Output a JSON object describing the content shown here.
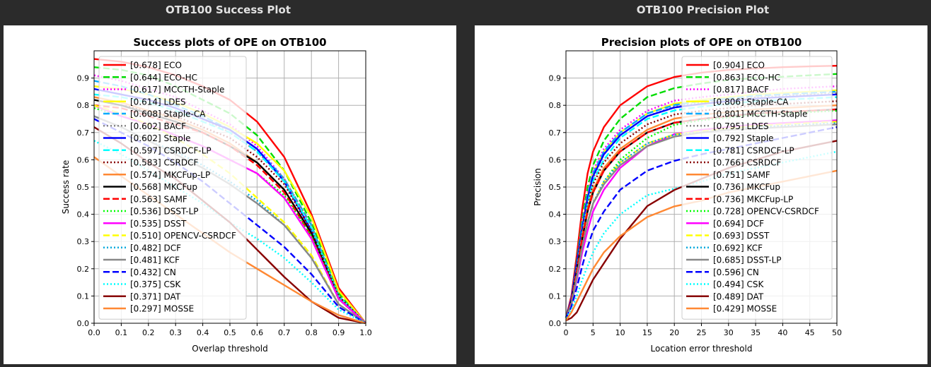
{
  "colors": {
    "background": "#2b2b2b",
    "panel_title": "#e2e2e2",
    "plot_bg": "#ffffff",
    "grid": "#b0b0b0"
  },
  "panels": [
    {
      "label": "OTB100 Success Plot"
    },
    {
      "label": "OTB100 Precision Plot"
    }
  ],
  "chart_data": [
    {
      "type": "line",
      "title": "Success plots of OPE on OTB100",
      "xlabel": "Overlap threshold",
      "ylabel": "Success rate",
      "xlim": [
        0,
        1
      ],
      "ylim": [
        0,
        1
      ],
      "xticks": [
        "0.0",
        "0.1",
        "0.2",
        "0.3",
        "0.4",
        "0.5",
        "0.6",
        "0.7",
        "0.8",
        "0.9",
        "1.0"
      ],
      "yticks": [
        "0.0",
        "0.1",
        "0.2",
        "0.3",
        "0.4",
        "0.5",
        "0.6",
        "0.7",
        "0.8",
        "0.9"
      ],
      "grid": true,
      "legend_position": "top-left",
      "x": [
        0,
        0.1,
        0.2,
        0.3,
        0.4,
        0.5,
        0.6,
        0.7,
        0.8,
        0.9,
        1.0
      ],
      "series": [
        {
          "name": "[0.678] ECO",
          "color": "#ff0000",
          "dash": "solid",
          "values": [
            0.97,
            0.96,
            0.94,
            0.91,
            0.87,
            0.82,
            0.74,
            0.61,
            0.4,
            0.13,
            0.0
          ]
        },
        {
          "name": "[0.644] ECO-HC",
          "color": "#00dd00",
          "dash": "dashed",
          "values": [
            0.94,
            0.93,
            0.91,
            0.87,
            0.82,
            0.77,
            0.69,
            0.56,
            0.37,
            0.11,
            0.0
          ]
        },
        {
          "name": "[0.617] MCCTH-Staple",
          "color": "#ff00ff",
          "dash": "dotted",
          "values": [
            0.91,
            0.89,
            0.86,
            0.83,
            0.78,
            0.73,
            0.65,
            0.53,
            0.35,
            0.1,
            0.0
          ]
        },
        {
          "name": "[0.614] LDES",
          "color": "#ffff00",
          "dash": "solid",
          "values": [
            0.87,
            0.86,
            0.84,
            0.81,
            0.77,
            0.72,
            0.66,
            0.56,
            0.39,
            0.12,
            0.0
          ]
        },
        {
          "name": "[0.608] Staple-CA",
          "color": "#00aaff",
          "dash": "dashed",
          "values": [
            0.89,
            0.87,
            0.84,
            0.8,
            0.76,
            0.71,
            0.64,
            0.53,
            0.36,
            0.1,
            0.0
          ]
        },
        {
          "name": "[0.602] BACF",
          "color": "#888888",
          "dash": "dotted",
          "values": [
            0.86,
            0.84,
            0.82,
            0.79,
            0.75,
            0.7,
            0.63,
            0.53,
            0.36,
            0.1,
            0.0
          ]
        },
        {
          "name": "[0.602] Staple",
          "color": "#0000ff",
          "dash": "solid",
          "values": [
            0.86,
            0.84,
            0.82,
            0.79,
            0.75,
            0.71,
            0.64,
            0.52,
            0.34,
            0.09,
            0.0
          ]
        },
        {
          "name": "[0.597] CSRDCF-LP",
          "color": "#00ffff",
          "dash": "dashed",
          "values": [
            0.84,
            0.83,
            0.81,
            0.78,
            0.74,
            0.7,
            0.63,
            0.52,
            0.35,
            0.1,
            0.0
          ]
        },
        {
          "name": "[0.583] CSRDCF",
          "color": "#880000",
          "dash": "dotted",
          "values": [
            0.82,
            0.8,
            0.78,
            0.76,
            0.72,
            0.68,
            0.61,
            0.51,
            0.34,
            0.1,
            0.0
          ]
        },
        {
          "name": "[0.574] MKCFup-LP",
          "color": "#ff8833",
          "dash": "solid",
          "values": [
            0.83,
            0.81,
            0.78,
            0.75,
            0.71,
            0.66,
            0.59,
            0.49,
            0.33,
            0.09,
            0.0
          ]
        },
        {
          "name": "[0.568] MKCFup",
          "color": "#000000",
          "dash": "solid",
          "values": [
            0.82,
            0.8,
            0.77,
            0.74,
            0.7,
            0.65,
            0.59,
            0.49,
            0.33,
            0.09,
            0.0
          ]
        },
        {
          "name": "[0.563] SAMF",
          "color": "#ff0000",
          "dash": "dashed",
          "values": [
            0.8,
            0.79,
            0.76,
            0.73,
            0.7,
            0.65,
            0.58,
            0.48,
            0.32,
            0.09,
            0.0
          ]
        },
        {
          "name": "[0.536] DSST-LP",
          "color": "#00ff00",
          "dash": "dotted",
          "values": [
            0.79,
            0.76,
            0.73,
            0.69,
            0.65,
            0.6,
            0.55,
            0.47,
            0.32,
            0.09,
            0.0
          ]
        },
        {
          "name": "[0.535] DSST",
          "color": "#ff00ff",
          "dash": "solid",
          "values": [
            0.8,
            0.76,
            0.73,
            0.69,
            0.65,
            0.6,
            0.55,
            0.46,
            0.31,
            0.09,
            0.0
          ]
        },
        {
          "name": "[0.510] OPENCV-CSRDCF",
          "color": "#ffff00",
          "dash": "dashed",
          "values": [
            0.8,
            0.77,
            0.73,
            0.68,
            0.62,
            0.55,
            0.46,
            0.37,
            0.25,
            0.07,
            0.0
          ]
        },
        {
          "name": "[0.482] DCF",
          "color": "#00aadd",
          "dash": "dotted",
          "values": [
            0.76,
            0.72,
            0.67,
            0.63,
            0.58,
            0.52,
            0.45,
            0.36,
            0.24,
            0.07,
            0.0
          ]
        },
        {
          "name": "[0.481] KCF",
          "color": "#888888",
          "dash": "solid",
          "values": [
            0.76,
            0.72,
            0.67,
            0.62,
            0.57,
            0.51,
            0.44,
            0.36,
            0.24,
            0.07,
            0.0
          ]
        },
        {
          "name": "[0.432] CN",
          "color": "#0000ff",
          "dash": "dashed",
          "values": [
            0.75,
            0.7,
            0.65,
            0.59,
            0.52,
            0.44,
            0.36,
            0.28,
            0.18,
            0.06,
            0.0
          ]
        },
        {
          "name": "[0.375] CSK",
          "color": "#00ffff",
          "dash": "dotted",
          "values": [
            0.67,
            0.62,
            0.56,
            0.5,
            0.44,
            0.37,
            0.31,
            0.24,
            0.15,
            0.05,
            0.0
          ]
        },
        {
          "name": "[0.371] DAT",
          "color": "#880000",
          "dash": "solid",
          "values": [
            0.72,
            0.66,
            0.59,
            0.53,
            0.45,
            0.37,
            0.27,
            0.17,
            0.08,
            0.02,
            0.0
          ]
        },
        {
          "name": "[0.297] MOSSE",
          "color": "#ff8833",
          "dash": "solid",
          "values": [
            0.61,
            0.54,
            0.47,
            0.4,
            0.33,
            0.26,
            0.2,
            0.14,
            0.08,
            0.03,
            0.0
          ]
        }
      ]
    },
    {
      "type": "line",
      "title": "Precision plots of OPE on OTB100",
      "xlabel": "Location error threshold",
      "ylabel": "Precision",
      "xlim": [
        0,
        50
      ],
      "ylim": [
        0,
        1
      ],
      "xticks": [
        "0",
        "5",
        "10",
        "15",
        "20",
        "25",
        "30",
        "35",
        "40",
        "45",
        "50"
      ],
      "yticks": [
        "0.0",
        "0.1",
        "0.2",
        "0.3",
        "0.4",
        "0.5",
        "0.6",
        "0.7",
        "0.8",
        "0.9"
      ],
      "grid": true,
      "legend_position": "top-right",
      "x": [
        0,
        1,
        2,
        3,
        4,
        5,
        7,
        10,
        15,
        20,
        25,
        30,
        35,
        40,
        45,
        50
      ],
      "series": [
        {
          "name": "[0.904] ECO",
          "color": "#ff0000",
          "dash": "solid",
          "values": [
            0.02,
            0.1,
            0.25,
            0.42,
            0.55,
            0.63,
            0.72,
            0.8,
            0.87,
            0.904,
            0.92,
            0.93,
            0.935,
            0.94,
            0.943,
            0.945
          ]
        },
        {
          "name": "[0.863] ECO-HC",
          "color": "#00dd00",
          "dash": "dashed",
          "values": [
            0.02,
            0.09,
            0.23,
            0.38,
            0.5,
            0.58,
            0.67,
            0.75,
            0.83,
            0.863,
            0.88,
            0.893,
            0.9,
            0.905,
            0.91,
            0.915
          ]
        },
        {
          "name": "[0.817] BACF",
          "color": "#ff00ff",
          "dash": "dotted",
          "values": [
            0.02,
            0.09,
            0.22,
            0.37,
            0.48,
            0.56,
            0.64,
            0.71,
            0.78,
            0.817,
            0.83,
            0.84,
            0.85,
            0.86,
            0.865,
            0.87
          ]
        },
        {
          "name": "[0.806] Staple-CA",
          "color": "#ffff00",
          "dash": "solid",
          "values": [
            0.02,
            0.09,
            0.22,
            0.36,
            0.47,
            0.55,
            0.63,
            0.7,
            0.77,
            0.806,
            0.82,
            0.83,
            0.84,
            0.845,
            0.85,
            0.855
          ]
        },
        {
          "name": "[0.801] MCCTH-Staple",
          "color": "#00aaff",
          "dash": "dashed",
          "values": [
            0.02,
            0.09,
            0.22,
            0.36,
            0.47,
            0.55,
            0.63,
            0.7,
            0.77,
            0.801,
            0.815,
            0.825,
            0.835,
            0.84,
            0.845,
            0.85
          ]
        },
        {
          "name": "[0.795] LDES",
          "color": "#888888",
          "dash": "dotted",
          "values": [
            0.02,
            0.08,
            0.2,
            0.34,
            0.45,
            0.53,
            0.62,
            0.69,
            0.76,
            0.795,
            0.81,
            0.82,
            0.83,
            0.835,
            0.84,
            0.845
          ]
        },
        {
          "name": "[0.792] Staple",
          "color": "#0000ff",
          "dash": "solid",
          "values": [
            0.02,
            0.09,
            0.22,
            0.35,
            0.46,
            0.54,
            0.62,
            0.69,
            0.76,
            0.792,
            0.805,
            0.815,
            0.825,
            0.83,
            0.835,
            0.84
          ]
        },
        {
          "name": "[0.781] CSRDCF-LP",
          "color": "#00ffff",
          "dash": "dashed",
          "values": [
            0.02,
            0.08,
            0.2,
            0.33,
            0.44,
            0.52,
            0.6,
            0.68,
            0.75,
            0.781,
            0.795,
            0.805,
            0.815,
            0.82,
            0.825,
            0.83
          ]
        },
        {
          "name": "[0.766] CSRDCF",
          "color": "#880000",
          "dash": "dotted",
          "values": [
            0.02,
            0.08,
            0.2,
            0.33,
            0.43,
            0.51,
            0.59,
            0.66,
            0.73,
            0.766,
            0.78,
            0.79,
            0.8,
            0.805,
            0.81,
            0.815
          ]
        },
        {
          "name": "[0.751] SAMF",
          "color": "#ff8833",
          "dash": "solid",
          "values": [
            0.02,
            0.08,
            0.19,
            0.32,
            0.42,
            0.49,
            0.57,
            0.64,
            0.71,
            0.751,
            0.765,
            0.775,
            0.785,
            0.79,
            0.795,
            0.8
          ]
        },
        {
          "name": "[0.736] MKCFup",
          "color": "#000000",
          "dash": "solid",
          "values": [
            0.02,
            0.08,
            0.19,
            0.31,
            0.41,
            0.48,
            0.56,
            0.63,
            0.7,
            0.736,
            0.75,
            0.76,
            0.77,
            0.775,
            0.78,
            0.785
          ]
        },
        {
          "name": "[0.736] MKCFup-LP",
          "color": "#ff0000",
          "dash": "dashed",
          "values": [
            0.02,
            0.08,
            0.19,
            0.31,
            0.41,
            0.48,
            0.56,
            0.63,
            0.7,
            0.736,
            0.75,
            0.76,
            0.77,
            0.775,
            0.78,
            0.785
          ]
        },
        {
          "name": "[0.728] OPENCV-CSRDCF",
          "color": "#00ff00",
          "dash": "dotted",
          "values": [
            0.02,
            0.07,
            0.17,
            0.28,
            0.37,
            0.44,
            0.52,
            0.6,
            0.68,
            0.728,
            0.745,
            0.755,
            0.765,
            0.77,
            0.775,
            0.78
          ]
        },
        {
          "name": "[0.694] DCF",
          "color": "#ff00ff",
          "dash": "solid",
          "values": [
            0.02,
            0.07,
            0.16,
            0.26,
            0.34,
            0.41,
            0.49,
            0.57,
            0.65,
            0.694,
            0.71,
            0.72,
            0.73,
            0.735,
            0.74,
            0.745
          ]
        },
        {
          "name": "[0.693] DSST",
          "color": "#ffff00",
          "dash": "dashed",
          "values": [
            0.02,
            0.07,
            0.17,
            0.28,
            0.37,
            0.44,
            0.52,
            0.59,
            0.66,
            0.693,
            0.705,
            0.715,
            0.725,
            0.73,
            0.735,
            0.74
          ]
        },
        {
          "name": "[0.692] KCF",
          "color": "#00aadd",
          "dash": "dotted",
          "values": [
            0.02,
            0.07,
            0.17,
            0.28,
            0.37,
            0.44,
            0.52,
            0.59,
            0.66,
            0.692,
            0.7,
            0.71,
            0.72,
            0.725,
            0.73,
            0.735
          ]
        },
        {
          "name": "[0.685] DSST-LP",
          "color": "#888888",
          "dash": "solid",
          "values": [
            0.02,
            0.07,
            0.17,
            0.28,
            0.37,
            0.44,
            0.51,
            0.58,
            0.65,
            0.685,
            0.7,
            0.71,
            0.715,
            0.72,
            0.725,
            0.73
          ]
        },
        {
          "name": "[0.596] CN",
          "color": "#0000ff",
          "dash": "dashed",
          "values": [
            0.02,
            0.06,
            0.13,
            0.21,
            0.28,
            0.34,
            0.41,
            0.49,
            0.56,
            0.596,
            0.62,
            0.64,
            0.66,
            0.68,
            0.7,
            0.72
          ]
        },
        {
          "name": "[0.494] CSK",
          "color": "#00ffff",
          "dash": "dotted",
          "values": [
            0.02,
            0.05,
            0.1,
            0.16,
            0.21,
            0.26,
            0.33,
            0.4,
            0.47,
            0.494,
            0.52,
            0.55,
            0.57,
            0.59,
            0.61,
            0.63
          ]
        },
        {
          "name": "[0.489] DAT",
          "color": "#880000",
          "dash": "solid",
          "values": [
            0.01,
            0.02,
            0.04,
            0.08,
            0.12,
            0.16,
            0.22,
            0.31,
            0.43,
            0.489,
            0.53,
            0.57,
            0.6,
            0.63,
            0.65,
            0.67
          ]
        },
        {
          "name": "[0.429] MOSSE",
          "color": "#ff8833",
          "dash": "solid",
          "values": [
            0.01,
            0.04,
            0.08,
            0.12,
            0.16,
            0.2,
            0.26,
            0.32,
            0.39,
            0.429,
            0.45,
            0.48,
            0.5,
            0.52,
            0.54,
            0.56
          ]
        }
      ]
    }
  ]
}
